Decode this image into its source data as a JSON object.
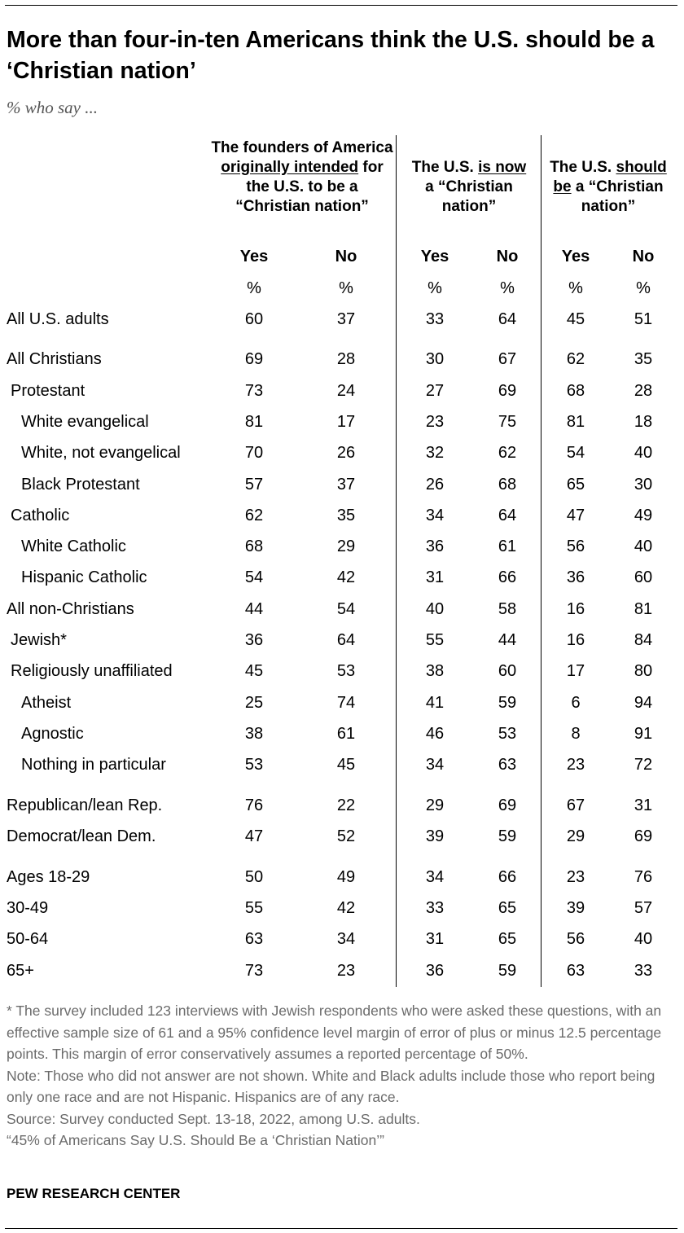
{
  "title": "More than four-in-ten Americans think the U.S. should be a ‘Christian nation’",
  "subtitle": "% who say ...",
  "columns": [
    {
      "pre": "The founders of America ",
      "emph1": "originally intended",
      "post": " for the U.S. to be a “Christian nation”"
    },
    {
      "pre": "The U.S. ",
      "emph1": "is now",
      "post": " a “Christian nation”"
    },
    {
      "pre": "The U.S. ",
      "emph1": "should be",
      "post": " a “Christian nation”"
    }
  ],
  "yes_label": "Yes",
  "no_label": "No",
  "pct_label": "%",
  "chart_data": {
    "type": "table",
    "title": "More than four-in-ten Americans think the U.S. should be a ‘Christian nation’",
    "subtitle": "% who say ...",
    "columns": [
      "The founders of America originally intended for the U.S. to be a “Christian nation” - Yes",
      "The founders of America originally intended for the U.S. to be a “Christian nation” - No",
      "The U.S. is now a “Christian nation” - Yes",
      "The U.S. is now a “Christian nation” - No",
      "The U.S. should be a “Christian nation” - Yes",
      "The U.S. should be a “Christian nation” - No"
    ],
    "rows": [
      {
        "label": "All U.S. adults",
        "values": [
          60,
          37,
          33,
          64,
          45,
          51
        ]
      },
      {
        "label": "All Christians",
        "values": [
          69,
          28,
          30,
          67,
          62,
          35
        ]
      },
      {
        "label": "Protestant",
        "values": [
          73,
          24,
          27,
          69,
          68,
          28
        ]
      },
      {
        "label": "White evangelical",
        "values": [
          81,
          17,
          23,
          75,
          81,
          18
        ]
      },
      {
        "label": "White, not evangelical",
        "values": [
          70,
          26,
          32,
          62,
          54,
          40
        ]
      },
      {
        "label": "Black Protestant",
        "values": [
          57,
          37,
          26,
          68,
          65,
          30
        ]
      },
      {
        "label": "Catholic",
        "values": [
          62,
          35,
          34,
          64,
          47,
          49
        ]
      },
      {
        "label": "White Catholic",
        "values": [
          68,
          29,
          36,
          61,
          56,
          40
        ]
      },
      {
        "label": "Hispanic Catholic",
        "values": [
          54,
          42,
          31,
          66,
          36,
          60
        ]
      },
      {
        "label": "All non-Christians",
        "values": [
          44,
          54,
          40,
          58,
          16,
          81
        ]
      },
      {
        "label": "Jewish*",
        "values": [
          36,
          64,
          55,
          44,
          16,
          84
        ]
      },
      {
        "label": "Religiously unaffiliated",
        "values": [
          45,
          53,
          38,
          60,
          17,
          80
        ]
      },
      {
        "label": "Atheist",
        "values": [
          25,
          74,
          41,
          59,
          6,
          94
        ]
      },
      {
        "label": "Agnostic",
        "values": [
          38,
          61,
          46,
          53,
          8,
          91
        ]
      },
      {
        "label": "Nothing in particular",
        "values": [
          53,
          45,
          34,
          63,
          23,
          72
        ]
      },
      {
        "label": "Republican/lean Rep.",
        "values": [
          76,
          22,
          29,
          69,
          67,
          31
        ]
      },
      {
        "label": "Democrat/lean Dem.",
        "values": [
          47,
          52,
          39,
          59,
          29,
          69
        ]
      },
      {
        "label": "Ages 18-29",
        "values": [
          50,
          49,
          34,
          66,
          23,
          76
        ]
      },
      {
        "label": "30-49",
        "values": [
          55,
          42,
          33,
          65,
          39,
          57
        ]
      },
      {
        "label": "50-64",
        "values": [
          63,
          34,
          31,
          65,
          56,
          40
        ]
      },
      {
        "label": "65+",
        "values": [
          73,
          23,
          36,
          59,
          63,
          33
        ]
      }
    ]
  },
  "notes": [
    "* The survey included 123 interviews with Jewish respondents who were asked these questions, with an effective sample size of 61 and a 95% confidence level margin of error of plus or minus 12.5 percentage points. This margin of error conservatively assumes a reported percentage of 50%.",
    "Note: Those who did not answer are not shown. White and Black adults include those who report being only one race and are not Hispanic. Hispanics are of any race.",
    "Source: Survey conducted Sept. 13-18, 2022, among U.S. adults.",
    "“45% of Americans Say U.S. Should Be a ‘Christian Nation’”"
  ],
  "brand": "PEW RESEARCH CENTER"
}
